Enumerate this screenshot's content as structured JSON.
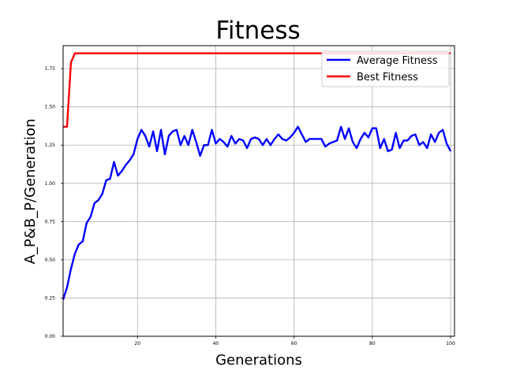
{
  "chart_data": {
    "type": "line",
    "title": "Fitness",
    "xlabel": "Generations",
    "ylabel": "A_P&B_P/Generation",
    "xlim": [
      1,
      101
    ],
    "ylim": [
      0,
      1.9
    ],
    "xticks": [
      20,
      40,
      60,
      80,
      100
    ],
    "yticks": [
      0.0,
      0.25,
      0.5,
      0.75,
      1.0,
      1.25,
      1.5,
      1.75
    ],
    "ytick_labels": [
      "0.00",
      "0.25",
      "0.50",
      "0.75",
      "1.00",
      "1.25",
      "1.50",
      "1.75"
    ],
    "grid": true,
    "legend_position": "top-right",
    "series": [
      {
        "name": "Average Fitness",
        "color": "#0000ff",
        "x": [
          1,
          2,
          3,
          4,
          5,
          6,
          7,
          8,
          9,
          10,
          11,
          12,
          13,
          14,
          15,
          16,
          17,
          18,
          19,
          20,
          21,
          22,
          23,
          24,
          25,
          26,
          27,
          28,
          29,
          30,
          31,
          32,
          33,
          34,
          35,
          36,
          37,
          38,
          39,
          40,
          41,
          42,
          43,
          44,
          45,
          46,
          47,
          48,
          49,
          50,
          51,
          52,
          53,
          54,
          55,
          56,
          57,
          58,
          59,
          60,
          61,
          62,
          63,
          64,
          65,
          66,
          67,
          68,
          69,
          70,
          71,
          72,
          73,
          74,
          75,
          76,
          77,
          78,
          79,
          80,
          81,
          82,
          83,
          84,
          85,
          86,
          87,
          88,
          89,
          90,
          91,
          92,
          93,
          94,
          95,
          96,
          97,
          98,
          99,
          100
        ],
        "values": [
          0.24,
          0.32,
          0.44,
          0.54,
          0.6,
          0.62,
          0.74,
          0.78,
          0.87,
          0.89,
          0.93,
          1.02,
          1.03,
          1.14,
          1.05,
          1.08,
          1.12,
          1.15,
          1.19,
          1.29,
          1.35,
          1.31,
          1.24,
          1.34,
          1.21,
          1.35,
          1.19,
          1.31,
          1.34,
          1.35,
          1.25,
          1.31,
          1.25,
          1.35,
          1.27,
          1.18,
          1.25,
          1.25,
          1.35,
          1.26,
          1.29,
          1.27,
          1.24,
          1.31,
          1.26,
          1.29,
          1.28,
          1.23,
          1.29,
          1.3,
          1.29,
          1.25,
          1.29,
          1.25,
          1.29,
          1.32,
          1.29,
          1.28,
          1.3,
          1.33,
          1.37,
          1.32,
          1.27,
          1.29,
          1.29,
          1.29,
          1.29,
          1.24,
          1.26,
          1.27,
          1.28,
          1.37,
          1.29,
          1.36,
          1.27,
          1.23,
          1.29,
          1.33,
          1.3,
          1.36,
          1.36,
          1.23,
          1.29,
          1.21,
          1.22,
          1.33,
          1.23,
          1.28,
          1.28,
          1.31,
          1.32,
          1.25,
          1.27,
          1.23,
          1.32,
          1.27,
          1.33,
          1.35,
          1.26,
          1.21
        ]
      },
      {
        "name": "Best Fitness",
        "color": "#ff0000",
        "x": [
          1,
          2,
          3,
          4,
          5,
          100
        ],
        "values": [
          1.37,
          1.37,
          1.79,
          1.85,
          1.85,
          1.85
        ]
      }
    ]
  }
}
